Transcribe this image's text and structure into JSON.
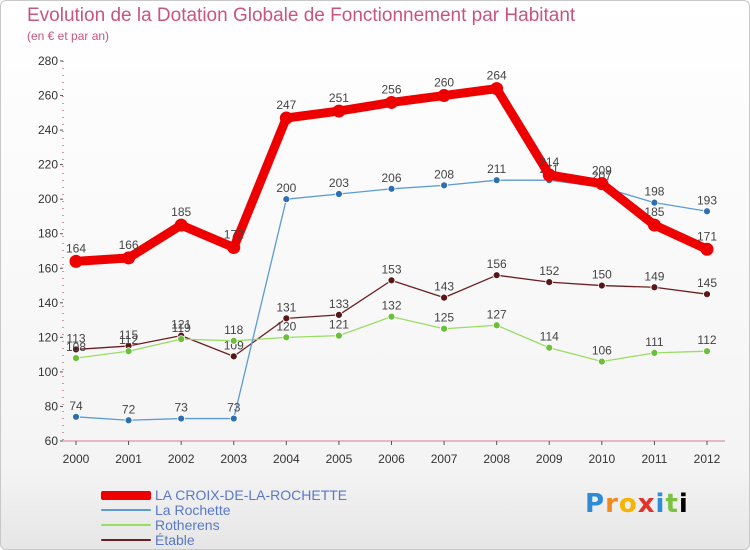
{
  "chart_data": {
    "type": "line",
    "title": "Evolution de la Dotation Globale de Fonctionnement par Habitant",
    "subtitle": "(en € et par an)",
    "x": [
      "2000",
      "2001",
      "2002",
      "2003",
      "2004",
      "2005",
      "2006",
      "2007",
      "2008",
      "2009",
      "2010",
      "2011",
      "2012"
    ],
    "ylim": [
      60,
      280
    ],
    "yticks": [
      "60",
      "80",
      "100",
      "120",
      "140",
      "160",
      "180",
      "200",
      "220",
      "240",
      "260",
      "280"
    ],
    "grid": false,
    "series": [
      {
        "name": "LA CROIX-DE-LA-ROCHETTE",
        "color": "#ee0000",
        "values": [
          164,
          166,
          185,
          172,
          247,
          251,
          256,
          260,
          264,
          214,
          209,
          185,
          171
        ]
      },
      {
        "name": "La Rochette",
        "color": "#5b9bd5",
        "values": [
          74,
          72,
          73,
          73,
          200,
          203,
          206,
          208,
          211,
          211,
          207,
          198,
          193
        ]
      },
      {
        "name": "Rotherens",
        "color": "#99dd66",
        "values": [
          108,
          112,
          119,
          118,
          120,
          121,
          132,
          125,
          127,
          114,
          106,
          111,
          112
        ]
      },
      {
        "name": "Étable",
        "color": "#6b1f22",
        "values": [
          113,
          115,
          121,
          109,
          131,
          133,
          153,
          143,
          156,
          152,
          150,
          149,
          145
        ]
      }
    ]
  },
  "logo": {
    "letters": [
      "P",
      "r",
      "o",
      "x",
      "i",
      "t",
      "i"
    ]
  }
}
